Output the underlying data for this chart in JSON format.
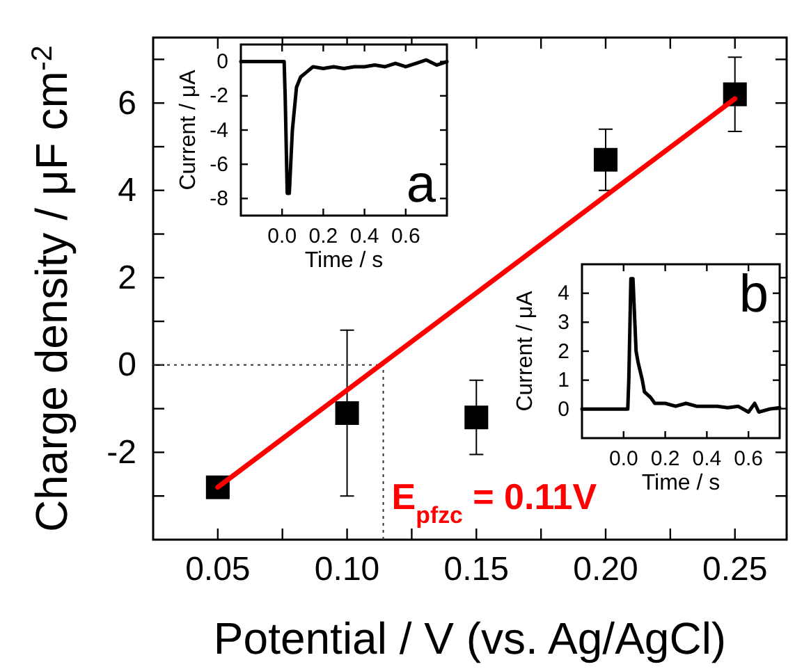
{
  "chart_data": [
    {
      "type": "scatter",
      "xlabel": "Potential / V (vs. Ag/AgCl)",
      "ylabel": "Charge density / μF cm$^{-2}$",
      "xlim": [
        0.025,
        0.27
      ],
      "xticks": [
        {
          "value": 0.05,
          "label": "0.05"
        },
        {
          "value": 0.075,
          "label": null
        },
        {
          "value": 0.1,
          "label": "0.10"
        },
        {
          "value": 0.125,
          "label": null
        },
        {
          "value": 0.15,
          "label": "0.15"
        },
        {
          "value": 0.175,
          "label": null
        },
        {
          "value": 0.2,
          "label": "0.20"
        },
        {
          "value": 0.225,
          "label": null
        },
        {
          "value": 0.25,
          "label": "0.25"
        }
      ],
      "ylim": [
        -4,
        7.5
      ],
      "yticks": [
        {
          "value": -3,
          "label": null
        },
        -2,
        {
          "value": -1,
          "label": null
        },
        0,
        {
          "value": 1,
          "label": null
        },
        2,
        {
          "value": 3,
          "label": null
        },
        4,
        {
          "value": 5,
          "label": null
        },
        6,
        {
          "value": 7,
          "label": null
        }
      ],
      "series": [
        {
          "color": "#000000",
          "marker": "square",
          "x": [
            0.05,
            0.1,
            0.15,
            0.2,
            0.25
          ],
          "values": [
            -2.8,
            -1.1,
            -1.2,
            4.7,
            6.2
          ],
          "errors": [
            null,
            1.9,
            0.85,
            0.7,
            0.85
          ]
        },
        {
          "type": "line",
          "color": "#ff0000",
          "x": [
            0.05,
            0.25
          ],
          "values": [
            -2.8,
            6.1
          ]
        }
      ],
      "ref_lines": [
        {
          "axis": "y",
          "value": 0,
          "line_style": "dotted"
        },
        {
          "axis": "x",
          "value": 0.114,
          "line_style": "dotted"
        }
      ],
      "annotations": [
        {
          "text": "E$_{pfzc}$ = 0.11V",
          "x": 0.114,
          "y": -3.3
        }
      ]
    },
    {
      "type": "line",
      "xlabel": "Time / s",
      "ylabel": "Current / μA",
      "xlim": [
        -0.2,
        0.8
      ],
      "xticks": [
        {
          "value": 0,
          "label": "0.0"
        },
        0.2,
        0.4,
        0.6
      ],
      "ylim": [
        -9,
        1
      ],
      "yticks": [
        -8,
        -6,
        -4,
        -2,
        0
      ],
      "series": [
        {
          "color": "#000000",
          "x": [
            -0.2,
            0.01,
            0.015,
            0.025,
            0.035,
            0.05,
            0.07,
            0.09,
            0.12,
            0.15,
            0.2,
            0.25,
            0.3,
            0.35,
            0.4,
            0.45,
            0.5,
            0.55,
            0.6,
            0.65,
            0.7,
            0.75,
            0.8
          ],
          "values": [
            0,
            0,
            -2,
            -7.7,
            -7.7,
            -4,
            -1.5,
            -0.9,
            -0.6,
            -0.3,
            -0.4,
            -0.3,
            -0.4,
            -0.3,
            -0.3,
            -0.2,
            -0.3,
            -0.1,
            -0.3,
            -0.1,
            0.1,
            -0.2,
            0
          ]
        }
      ],
      "annotations": [
        "a"
      ]
    },
    {
      "type": "line",
      "xlabel": "Time / s",
      "ylabel": "Current  / μA",
      "xlim": [
        -0.2,
        0.75
      ],
      "xticks": [
        {
          "value": 0,
          "label": "0.0"
        },
        0.2,
        0.4,
        0.6
      ],
      "ylim": [
        -1,
        5
      ],
      "yticks": [
        0,
        1,
        2,
        3,
        4
      ],
      "series": [
        {
          "color": "#000000",
          "x": [
            -0.2,
            0.02,
            0.025,
            0.035,
            0.045,
            0.06,
            0.07,
            0.09,
            0.1,
            0.13,
            0.15,
            0.2,
            0.25,
            0.3,
            0.35,
            0.4,
            0.45,
            0.5,
            0.55,
            0.6,
            0.63,
            0.65,
            0.7,
            0.75
          ],
          "values": [
            0,
            0,
            1,
            4.5,
            4.5,
            2,
            1.6,
            1,
            0.6,
            0.4,
            0.2,
            0.2,
            0.1,
            0.2,
            0.1,
            0.1,
            0.1,
            0.05,
            0.1,
            -0.1,
            0.2,
            -0.1,
            0,
            0.05
          ]
        }
      ],
      "annotations": [
        "b"
      ]
    }
  ]
}
